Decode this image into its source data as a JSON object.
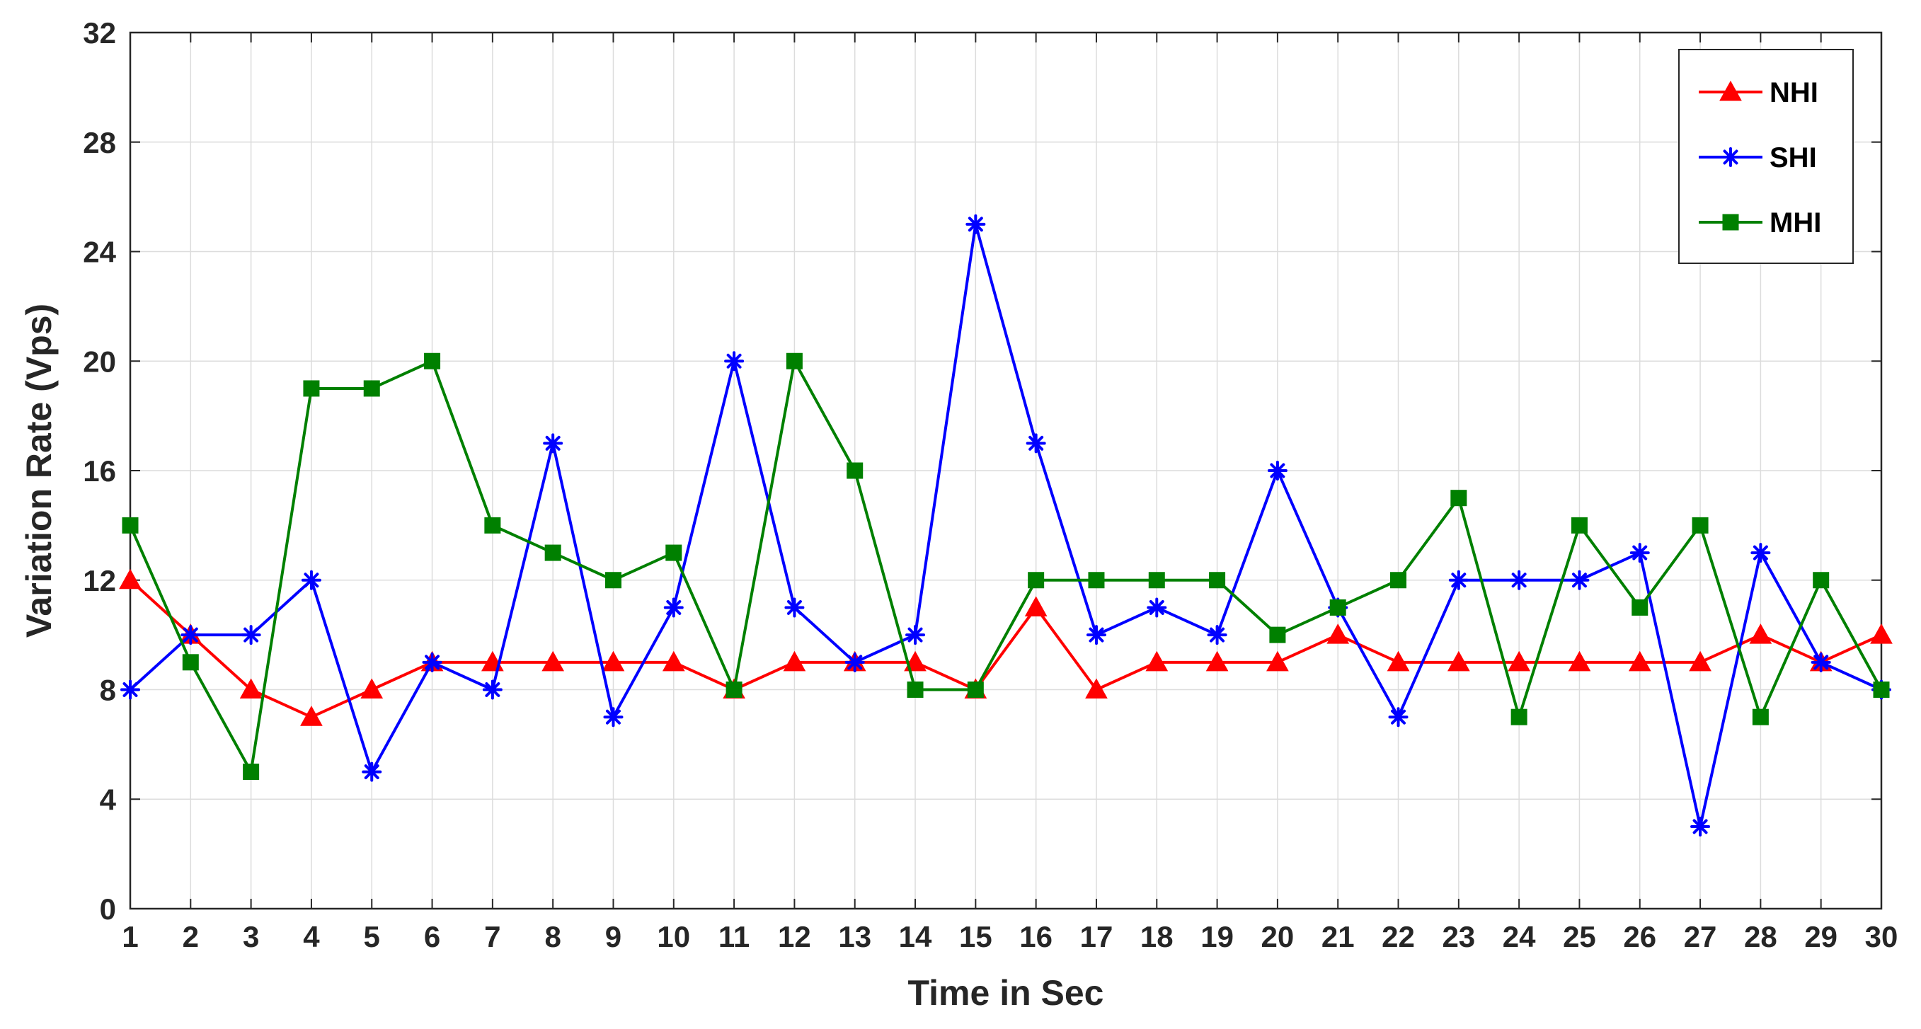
{
  "chart_data": {
    "type": "line",
    "xlabel": "Time in Sec",
    "ylabel": "Variation Rate (Vps)",
    "x": [
      1,
      2,
      3,
      4,
      5,
      6,
      7,
      8,
      9,
      10,
      11,
      12,
      13,
      14,
      15,
      16,
      17,
      18,
      19,
      20,
      21,
      22,
      23,
      24,
      25,
      26,
      27,
      28,
      29,
      30
    ],
    "xlim": [
      1,
      30
    ],
    "ylim": [
      0,
      32
    ],
    "yticks": [
      0,
      4,
      8,
      12,
      16,
      20,
      24,
      28,
      32
    ],
    "grid": true,
    "legend_position": "top-right",
    "series": [
      {
        "name": "NHI",
        "color": "#ff0000",
        "marker": "triangle",
        "values": [
          12,
          10,
          8,
          7,
          8,
          9,
          9,
          9,
          9,
          9,
          8,
          9,
          9,
          9,
          8,
          11,
          8,
          9,
          9,
          9,
          10,
          9,
          9,
          9,
          9,
          9,
          9,
          10,
          9,
          10
        ]
      },
      {
        "name": "SHI",
        "color": "#0000ff",
        "marker": "asterisk",
        "values": [
          8,
          10,
          10,
          12,
          5,
          9,
          8,
          17,
          7,
          11,
          20,
          11,
          9,
          10,
          25,
          17,
          10,
          11,
          10,
          16,
          11,
          7,
          12,
          12,
          12,
          13,
          3,
          13,
          9,
          8
        ]
      },
      {
        "name": "MHI",
        "color": "#008000",
        "marker": "square",
        "values": [
          14,
          9,
          5,
          19,
          19,
          20,
          14,
          13,
          12,
          13,
          8,
          20,
          16,
          8,
          8,
          12,
          12,
          12,
          12,
          10,
          11,
          12,
          15,
          7,
          14,
          11,
          14,
          7,
          12,
          8
        ]
      }
    ]
  }
}
